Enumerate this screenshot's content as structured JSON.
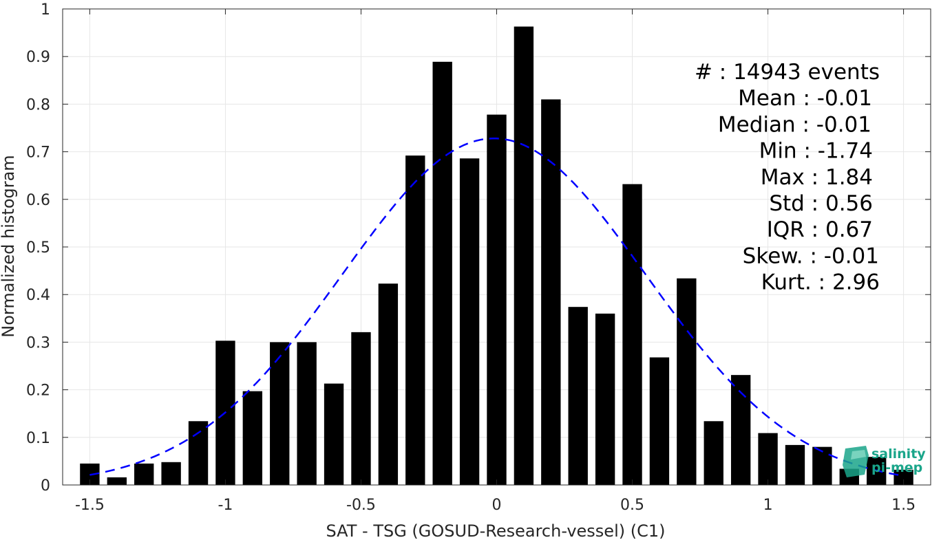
{
  "chart_data": {
    "type": "bar",
    "xlabel": "SAT - TSG (GOSUD-Research-vessel) (C1)",
    "ylabel": "Normalized histogram",
    "xlim": [
      -1.6,
      1.6
    ],
    "ylim": [
      0,
      1
    ],
    "grid": true,
    "x_ticks": [
      "-1.5",
      "-1",
      "-0.5",
      "0",
      "0.5",
      "1",
      "1.5"
    ],
    "y_ticks": [
      "0",
      "0.1",
      "0.2",
      "0.3",
      "0.4",
      "0.5",
      "0.6",
      "0.7",
      "0.8",
      "0.9",
      "1"
    ],
    "x_tick_values": [
      -1.5,
      -1,
      -0.5,
      0,
      0.5,
      1,
      1.5
    ],
    "y_tick_values": [
      0,
      0.1,
      0.2,
      0.3,
      0.4,
      0.5,
      0.6,
      0.7,
      0.8,
      0.9,
      1
    ],
    "bar_color": "#000000",
    "bars": {
      "x": [
        -1.5,
        -1.4,
        -1.3,
        -1.2,
        -1.1,
        -1.0,
        -0.9,
        -0.8,
        -0.7,
        -0.6,
        -0.5,
        -0.4,
        -0.3,
        -0.2,
        -0.1,
        0.0,
        0.1,
        0.2,
        0.3,
        0.4,
        0.5,
        0.6,
        0.7,
        0.8,
        0.9,
        1.0,
        1.1,
        1.2,
        1.3,
        1.4,
        1.5
      ],
      "values": [
        0.045,
        0.016,
        0.045,
        0.048,
        0.134,
        0.303,
        0.197,
        0.3,
        0.3,
        0.213,
        0.321,
        0.423,
        0.692,
        0.889,
        0.686,
        0.778,
        0.963,
        0.81,
        0.374,
        0.36,
        0.632,
        0.268,
        0.434,
        0.134,
        0.231,
        0.109,
        0.084,
        0.08,
        0.034,
        0.059,
        0.032
      ]
    },
    "fit_curve": {
      "style": "dashed",
      "color": "#0000ff",
      "mean": -0.01,
      "std": 0.56,
      "peak": 0.728,
      "x_range": [
        -1.5,
        1.5
      ]
    },
    "annotations": [
      {
        "label": "#  : 14943 events"
      },
      {
        "label": "Mean : -0.01"
      },
      {
        "label": "Median : -0.01"
      },
      {
        "label": "Min : -1.74"
      },
      {
        "label": "Max : 1.84"
      },
      {
        "label": "Std : 0.56"
      },
      {
        "label": "IQR : 0.67"
      },
      {
        "label": "Skew. : -0.01"
      },
      {
        "label": "Kurt. : 2.96"
      }
    ]
  },
  "logo": {
    "line1": "salinity",
    "line2": "pi-mep",
    "color": "#1aa58a"
  }
}
